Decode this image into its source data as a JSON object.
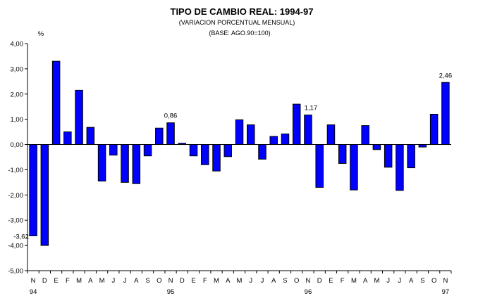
{
  "chart_data": {
    "type": "bar",
    "title": "TIPO DE CAMBIO REAL: 1994-97",
    "subtitle": "(VARIACION PORCENTUAL MENSUAL)",
    "subtitle2": "(BASE: AGO.90=100)",
    "ylabel": "%",
    "ylim": [
      -5,
      4
    ],
    "yticks": [
      "-5,00",
      "-4,00",
      "-3,00",
      "-2,00",
      "-1,00",
      "0,00",
      "1,00",
      "2,00",
      "3,00",
      "4,00"
    ],
    "bar_color": "#0000FF",
    "categories": [
      "N",
      "D",
      "E",
      "F",
      "M",
      "A",
      "M",
      "J",
      "J",
      "A",
      "S",
      "O",
      "N",
      "D",
      "E",
      "F",
      "M",
      "A",
      "M",
      "J",
      "J",
      "A",
      "S",
      "O",
      "N",
      "D",
      "E",
      "F",
      "M",
      "A",
      "M",
      "J",
      "J",
      "A",
      "S",
      "O",
      "N"
    ],
    "year_labels": [
      {
        "index": 0,
        "label": "94"
      },
      {
        "index": 12,
        "label": "95"
      },
      {
        "index": 24,
        "label": "96"
      },
      {
        "index": 36,
        "label": "97"
      }
    ],
    "values": [
      -3.62,
      -4.0,
      3.3,
      0.5,
      2.15,
      0.68,
      -1.45,
      -0.42,
      -1.5,
      -1.55,
      -0.45,
      0.65,
      0.86,
      0.05,
      -0.45,
      -0.8,
      -1.05,
      -0.48,
      0.98,
      0.78,
      -0.58,
      0.32,
      0.42,
      1.6,
      1.17,
      -1.7,
      0.78,
      -0.75,
      -1.8,
      0.75,
      -0.2,
      -0.9,
      -1.82,
      -0.92,
      -0.1,
      1.2,
      2.46
    ],
    "annotations": [
      {
        "index": 0,
        "label": "-3,62"
      },
      {
        "index": 12,
        "label": "0,86"
      },
      {
        "index": 24,
        "label": "1,17"
      },
      {
        "index": 36,
        "label": "2,46"
      }
    ]
  }
}
